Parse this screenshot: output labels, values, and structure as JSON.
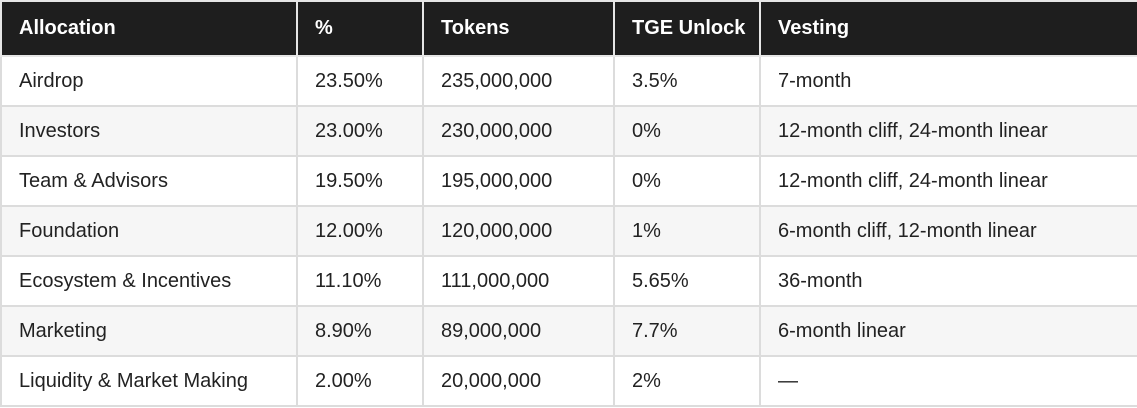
{
  "table": {
    "headers": [
      "Allocation",
      "%",
      "Tokens",
      "TGE Unlock",
      "Vesting"
    ],
    "rows": [
      [
        "Airdrop",
        "23.50%",
        "235,000,000",
        "3.5%",
        "7-month"
      ],
      [
        "Investors",
        "23.00%",
        "230,000,000",
        "0%",
        "12-month cliff, 24-month linear"
      ],
      [
        "Team & Advisors",
        "19.50%",
        "195,000,000",
        "0%",
        "12-month cliff, 24-month linear"
      ],
      [
        "Foundation",
        "12.00%",
        "120,000,000",
        "1%",
        "6-month cliff, 12-month linear"
      ],
      [
        "Ecosystem & Incentives",
        "11.10%",
        "111,000,000",
        "5.65%",
        "36-month"
      ],
      [
        "Marketing",
        "8.90%",
        "89,000,000",
        "7.7%",
        "6-month linear"
      ],
      [
        "Liquidity & Market Making",
        "2.00%",
        "20,000,000",
        "2%",
        "—"
      ]
    ]
  }
}
